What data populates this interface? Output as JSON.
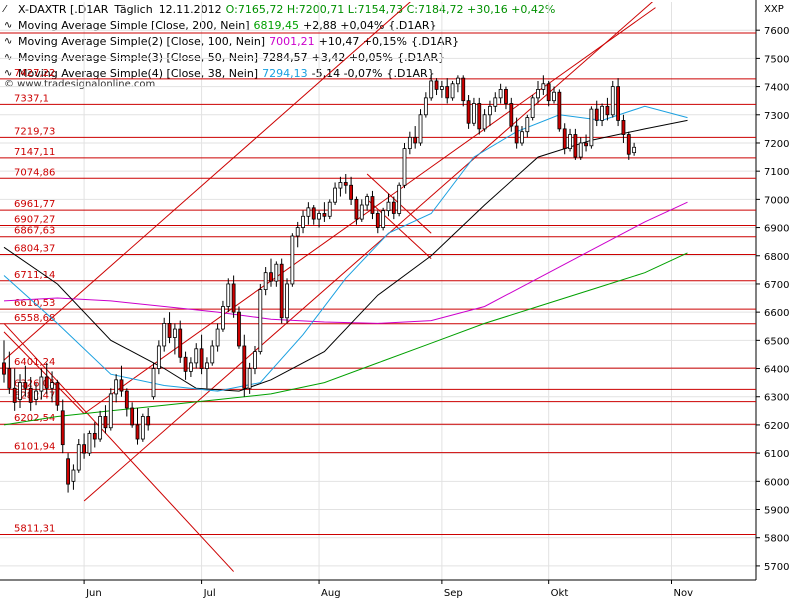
{
  "header": {
    "symbol": "X-DAXTR [.D1AR",
    "period": "Täglich",
    "date": "12.11.2012",
    "ohlc_values": "O:7165,72  H:7200,71  L:7154,73  C:7184,72  +30,16  +0,42%",
    "currency": "XXP"
  },
  "legend": [
    {
      "label": "Moving Average Simple [Close, 200, Nein]",
      "value": "6819,45",
      "change": "+2,88  +0,04%",
      "suffix": "{.D1AR}",
      "color": "#00a000"
    },
    {
      "label": "Moving Average Simple(2) [Close, 100, Nein]",
      "value": "7001,21",
      "change": "+10,47  +0,15%",
      "suffix": "{.D1AR}",
      "color": "#cc00cc"
    },
    {
      "label": "Moving Average Simple(3) [Close, 50, Nein]",
      "value": "7284,57",
      "change": "+3,42  +0,05%",
      "suffix": "{.D1AR}",
      "color": "#000000"
    },
    {
      "label": "Moving Average Simple(4) [Close, 38, Nein]",
      "value": "7294,13",
      "change": "-5,14  -0,07%",
      "suffix": "{.D1AR}",
      "color": "#1aa0e0"
    }
  ],
  "watermark": "© www.tradesignalonline.com",
  "colors": {
    "grid": "#e2e2e2",
    "level_line": "#cc0000",
    "level_text": "#cc0000",
    "candle_down": "#cc0000",
    "candle_up": "#ffffff",
    "candle_border": "#000000"
  },
  "chart_data": {
    "type": "candlestick",
    "ylim": [
      5650,
      7700
    ],
    "y_ticks": [
      5700,
      5800,
      5900,
      6000,
      6100,
      6200,
      6300,
      6400,
      6500,
      6600,
      6700,
      6800,
      6900,
      7000,
      7100,
      7200,
      7300,
      7400,
      7500,
      7600
    ],
    "y_tick_labels": [
      "5700",
      "5800",
      "5900",
      "6000",
      "6100",
      "6200",
      "6300",
      "6400",
      "6500",
      "6600",
      "6700",
      "6800",
      "6900",
      "7000",
      "7100",
      "7200",
      "7300",
      "7400",
      "7500",
      "7600"
    ],
    "x_months": [
      {
        "label": "Jun",
        "bar": 15
      },
      {
        "label": "Jul",
        "bar": 37
      },
      {
        "label": "Aug",
        "bar": 59
      },
      {
        "label": "Sep",
        "bar": 82
      },
      {
        "label": "Okt",
        "bar": 102
      },
      {
        "label": "Nov",
        "bar": 125
      }
    ],
    "horizontal_levels": [
      {
        "value": 7427.22,
        "label": "7427,22"
      },
      {
        "value": 7337.1,
        "label": "7337,1"
      },
      {
        "value": 7219.73,
        "label": "7219,73"
      },
      {
        "value": 7147.11,
        "label": "7147,11"
      },
      {
        "value": 7074.86,
        "label": "7074,86"
      },
      {
        "value": 6961.77,
        "label": "6961,77"
      },
      {
        "value": 6907.27,
        "label": "6907,27"
      },
      {
        "value": 6867.63,
        "label": "6867,63"
      },
      {
        "value": 6804.37,
        "label": "6804,37"
      },
      {
        "value": 6711.14,
        "label": "6711,14"
      },
      {
        "value": 6610.53,
        "label": "6610,53"
      },
      {
        "value": 6558.68,
        "label": "6558,68"
      },
      {
        "value": 6401.24,
        "label": "6401,24"
      },
      {
        "value": 6326.05,
        "label": "6326,05"
      },
      {
        "value": 6282.47,
        "label": "6282,47"
      },
      {
        "value": 6202.54,
        "label": "6202,54"
      },
      {
        "value": 6101.94,
        "label": "6101,94"
      },
      {
        "value": 5811.31,
        "label": "5811,31"
      }
    ],
    "upper_level": {
      "value": 7590
    },
    "trend_lines": [
      {
        "from": [
          0,
          6560
        ],
        "to": [
          43,
          5680
        ]
      },
      {
        "from": [
          0,
          6430
        ],
        "to": [
          106,
          8200
        ]
      },
      {
        "from": [
          15,
          5930
        ],
        "to": [
          125,
          7760
        ]
      },
      {
        "from": [
          15,
          6240
        ],
        "to": [
          122,
          7680
        ]
      },
      {
        "from": [
          68,
          7090
        ],
        "to": [
          80,
          6880
        ]
      },
      {
        "from": [
          68,
          7000
        ],
        "to": [
          80,
          6790
        ]
      },
      {
        "from": [
          0,
          6530
        ],
        "to": [
          15,
          6240
        ]
      }
    ],
    "candles": [
      {
        "o": 6420,
        "h": 6500,
        "l": 6350,
        "c": 6380
      },
      {
        "o": 6400,
        "h": 6460,
        "l": 6310,
        "c": 6330
      },
      {
        "o": 6330,
        "h": 6400,
        "l": 6250,
        "c": 6280
      },
      {
        "o": 6290,
        "h": 6380,
        "l": 6260,
        "c": 6350
      },
      {
        "o": 6350,
        "h": 6410,
        "l": 6300,
        "c": 6330
      },
      {
        "o": 6330,
        "h": 6370,
        "l": 6250,
        "c": 6280
      },
      {
        "o": 6290,
        "h": 6350,
        "l": 6270,
        "c": 6320
      },
      {
        "o": 6320,
        "h": 6400,
        "l": 6290,
        "c": 6370
      },
      {
        "o": 6370,
        "h": 6420,
        "l": 6310,
        "c": 6330
      },
      {
        "o": 6330,
        "h": 6390,
        "l": 6280,
        "c": 6350
      },
      {
        "o": 6350,
        "h": 6360,
        "l": 6250,
        "c": 6270
      },
      {
        "o": 6250,
        "h": 6290,
        "l": 6100,
        "c": 6130
      },
      {
        "o": 6080,
        "h": 6100,
        "l": 5960,
        "c": 5990
      },
      {
        "o": 6000,
        "h": 6060,
        "l": 5970,
        "c": 6040
      },
      {
        "o": 6040,
        "h": 6150,
        "l": 6030,
        "c": 6130
      },
      {
        "o": 6130,
        "h": 6170,
        "l": 6080,
        "c": 6100
      },
      {
        "o": 6100,
        "h": 6180,
        "l": 6090,
        "c": 6170
      },
      {
        "o": 6170,
        "h": 6210,
        "l": 6120,
        "c": 6150
      },
      {
        "o": 6150,
        "h": 6250,
        "l": 6140,
        "c": 6230
      },
      {
        "o": 6230,
        "h": 6270,
        "l": 6170,
        "c": 6190
      },
      {
        "o": 6190,
        "h": 6330,
        "l": 6180,
        "c": 6310
      },
      {
        "o": 6310,
        "h": 6380,
        "l": 6280,
        "c": 6360
      },
      {
        "o": 6360,
        "h": 6410,
        "l": 6300,
        "c": 6320
      },
      {
        "o": 6320,
        "h": 6330,
        "l": 6230,
        "c": 6260
      },
      {
        "o": 6260,
        "h": 6280,
        "l": 6190,
        "c": 6200
      },
      {
        "o": 6200,
        "h": 6260,
        "l": 6130,
        "c": 6150
      },
      {
        "o": 6150,
        "h": 6240,
        "l": 6140,
        "c": 6230
      },
      {
        "o": 6230,
        "h": 6260,
        "l": 6180,
        "c": 6200
      },
      {
        "o": 6300,
        "h": 6420,
        "l": 6290,
        "c": 6400
      },
      {
        "o": 6400,
        "h": 6500,
        "l": 6380,
        "c": 6480
      },
      {
        "o": 6480,
        "h": 6580,
        "l": 6460,
        "c": 6560
      },
      {
        "o": 6560,
        "h": 6600,
        "l": 6490,
        "c": 6510
      },
      {
        "o": 6510,
        "h": 6560,
        "l": 6450,
        "c": 6540
      },
      {
        "o": 6540,
        "h": 6570,
        "l": 6420,
        "c": 6440
      },
      {
        "o": 6440,
        "h": 6460,
        "l": 6360,
        "c": 6390
      },
      {
        "o": 6390,
        "h": 6440,
        "l": 6370,
        "c": 6420
      },
      {
        "o": 6420,
        "h": 6490,
        "l": 6400,
        "c": 6470
      },
      {
        "o": 6470,
        "h": 6520,
        "l": 6380,
        "c": 6400
      },
      {
        "o": 6400,
        "h": 6440,
        "l": 6330,
        "c": 6420
      },
      {
        "o": 6420,
        "h": 6500,
        "l": 6410,
        "c": 6480
      },
      {
        "o": 6480,
        "h": 6560,
        "l": 6460,
        "c": 6540
      },
      {
        "o": 6540,
        "h": 6640,
        "l": 6530,
        "c": 6620
      },
      {
        "o": 6620,
        "h": 6720,
        "l": 6600,
        "c": 6700
      },
      {
        "o": 6700,
        "h": 6730,
        "l": 6580,
        "c": 6600
      },
      {
        "o": 6600,
        "h": 6620,
        "l": 6470,
        "c": 6480
      },
      {
        "o": 6480,
        "h": 6520,
        "l": 6300,
        "c": 6330
      },
      {
        "o": 6330,
        "h": 6420,
        "l": 6310,
        "c": 6400
      },
      {
        "o": 6400,
        "h": 6480,
        "l": 6380,
        "c": 6460
      },
      {
        "o": 6460,
        "h": 6700,
        "l": 6450,
        "c": 6680
      },
      {
        "o": 6680,
        "h": 6760,
        "l": 6660,
        "c": 6740
      },
      {
        "o": 6740,
        "h": 6790,
        "l": 6690,
        "c": 6710
      },
      {
        "o": 6710,
        "h": 6780,
        "l": 6690,
        "c": 6770
      },
      {
        "o": 6770,
        "h": 6790,
        "l": 6560,
        "c": 6580
      },
      {
        "o": 6580,
        "h": 6720,
        "l": 6560,
        "c": 6700
      },
      {
        "o": 6700,
        "h": 6880,
        "l": 6690,
        "c": 6870
      },
      {
        "o": 6870,
        "h": 6920,
        "l": 6830,
        "c": 6900
      },
      {
        "o": 6900,
        "h": 6960,
        "l": 6880,
        "c": 6940
      },
      {
        "o": 6940,
        "h": 6990,
        "l": 6910,
        "c": 6970
      },
      {
        "o": 6970,
        "h": 6980,
        "l": 6910,
        "c": 6930
      },
      {
        "o": 6930,
        "h": 6960,
        "l": 6900,
        "c": 6950
      },
      {
        "o": 6950,
        "h": 6990,
        "l": 6920,
        "c": 6940
      },
      {
        "o": 6940,
        "h": 7000,
        "l": 6930,
        "c": 6990
      },
      {
        "o": 6990,
        "h": 7060,
        "l": 6980,
        "c": 7040
      },
      {
        "o": 7040,
        "h": 7080,
        "l": 7010,
        "c": 7060
      },
      {
        "o": 7060,
        "h": 7090,
        "l": 7020,
        "c": 7050
      },
      {
        "o": 7050,
        "h": 7080,
        "l": 6980,
        "c": 7000
      },
      {
        "o": 7000,
        "h": 7010,
        "l": 6910,
        "c": 6930
      },
      {
        "o": 6930,
        "h": 7000,
        "l": 6920,
        "c": 6980
      },
      {
        "o": 6980,
        "h": 7020,
        "l": 6960,
        "c": 7010
      },
      {
        "o": 7010,
        "h": 7030,
        "l": 6930,
        "c": 6950
      },
      {
        "o": 6950,
        "h": 6960,
        "l": 6880,
        "c": 6900
      },
      {
        "o": 6900,
        "h": 6970,
        "l": 6890,
        "c": 6960
      },
      {
        "o": 6960,
        "h": 7020,
        "l": 6940,
        "c": 6990
      },
      {
        "o": 6990,
        "h": 7010,
        "l": 6930,
        "c": 6950
      },
      {
        "o": 6950,
        "h": 7060,
        "l": 6940,
        "c": 7050
      },
      {
        "o": 7050,
        "h": 7200,
        "l": 7040,
        "c": 7180
      },
      {
        "o": 7180,
        "h": 7240,
        "l": 7160,
        "c": 7220
      },
      {
        "o": 7220,
        "h": 7260,
        "l": 7180,
        "c": 7200
      },
      {
        "o": 7200,
        "h": 7320,
        "l": 7190,
        "c": 7300
      },
      {
        "o": 7300,
        "h": 7380,
        "l": 7290,
        "c": 7360
      },
      {
        "o": 7360,
        "h": 7440,
        "l": 7350,
        "c": 7420
      },
      {
        "o": 7420,
        "h": 7430,
        "l": 7370,
        "c": 7390
      },
      {
        "o": 7390,
        "h": 7420,
        "l": 7360,
        "c": 7400
      },
      {
        "o": 7400,
        "h": 7430,
        "l": 7340,
        "c": 7360
      },
      {
        "o": 7360,
        "h": 7420,
        "l": 7350,
        "c": 7410
      },
      {
        "o": 7410,
        "h": 7440,
        "l": 7380,
        "c": 7430
      },
      {
        "o": 7430,
        "h": 7440,
        "l": 7330,
        "c": 7350
      },
      {
        "o": 7350,
        "h": 7370,
        "l": 7250,
        "c": 7270
      },
      {
        "o": 7270,
        "h": 7360,
        "l": 7260,
        "c": 7340
      },
      {
        "o": 7340,
        "h": 7360,
        "l": 7230,
        "c": 7250
      },
      {
        "o": 7250,
        "h": 7320,
        "l": 7240,
        "c": 7300
      },
      {
        "o": 7300,
        "h": 7350,
        "l": 7260,
        "c": 7330
      },
      {
        "o": 7330,
        "h": 7380,
        "l": 7310,
        "c": 7360
      },
      {
        "o": 7360,
        "h": 7410,
        "l": 7340,
        "c": 7390
      },
      {
        "o": 7390,
        "h": 7400,
        "l": 7320,
        "c": 7340
      },
      {
        "o": 7340,
        "h": 7360,
        "l": 7240,
        "c": 7260
      },
      {
        "o": 7260,
        "h": 7290,
        "l": 7180,
        "c": 7200
      },
      {
        "o": 7200,
        "h": 7260,
        "l": 7190,
        "c": 7240
      },
      {
        "o": 7240,
        "h": 7300,
        "l": 7220,
        "c": 7290
      },
      {
        "o": 7290,
        "h": 7370,
        "l": 7280,
        "c": 7360
      },
      {
        "o": 7360,
        "h": 7420,
        "l": 7340,
        "c": 7390
      },
      {
        "o": 7390,
        "h": 7440,
        "l": 7370,
        "c": 7410
      },
      {
        "o": 7410,
        "h": 7420,
        "l": 7330,
        "c": 7350
      },
      {
        "o": 7350,
        "h": 7400,
        "l": 7340,
        "c": 7380
      },
      {
        "o": 7380,
        "h": 7390,
        "l": 7240,
        "c": 7250
      },
      {
        "o": 7250,
        "h": 7270,
        "l": 7160,
        "c": 7180
      },
      {
        "o": 7180,
        "h": 7250,
        "l": 7170,
        "c": 7230
      },
      {
        "o": 7230,
        "h": 7250,
        "l": 7140,
        "c": 7150
      },
      {
        "o": 7150,
        "h": 7220,
        "l": 7140,
        "c": 7200
      },
      {
        "o": 7200,
        "h": 7230,
        "l": 7170,
        "c": 7190
      },
      {
        "o": 7190,
        "h": 7330,
        "l": 7180,
        "c": 7320
      },
      {
        "o": 7320,
        "h": 7350,
        "l": 7260,
        "c": 7280
      },
      {
        "o": 7280,
        "h": 7340,
        "l": 7260,
        "c": 7330
      },
      {
        "o": 7330,
        "h": 7360,
        "l": 7280,
        "c": 7300
      },
      {
        "o": 7300,
        "h": 7420,
        "l": 7290,
        "c": 7400
      },
      {
        "o": 7400,
        "h": 7430,
        "l": 7260,
        "c": 7280
      },
      {
        "o": 7280,
        "h": 7300,
        "l": 7200,
        "c": 7230
      },
      {
        "o": 7230,
        "h": 7240,
        "l": 7140,
        "c": 7160
      },
      {
        "o": 7165.72,
        "h": 7200.71,
        "l": 7154.73,
        "c": 7184.72
      }
    ],
    "series": [
      {
        "name": "Moving Average Simple [Close, 200, Nein]",
        "color": "#00a000",
        "points": [
          [
            0,
            6200
          ],
          [
            10,
            6230
          ],
          [
            20,
            6250
          ],
          [
            30,
            6270
          ],
          [
            40,
            6290
          ],
          [
            50,
            6310
          ],
          [
            60,
            6350
          ],
          [
            70,
            6420
          ],
          [
            80,
            6490
          ],
          [
            90,
            6560
          ],
          [
            100,
            6620
          ],
          [
            110,
            6680
          ],
          [
            120,
            6740
          ],
          [
            128,
            6810
          ]
        ]
      },
      {
        "name": "Moving Average Simple(2) [Close, 100, Nein]",
        "color": "#cc00cc",
        "points": [
          [
            0,
            6640
          ],
          [
            10,
            6650
          ],
          [
            20,
            6640
          ],
          [
            30,
            6620
          ],
          [
            40,
            6600
          ],
          [
            50,
            6575
          ],
          [
            60,
            6565
          ],
          [
            70,
            6560
          ],
          [
            80,
            6570
          ],
          [
            90,
            6620
          ],
          [
            100,
            6720
          ],
          [
            110,
            6820
          ],
          [
            120,
            6920
          ],
          [
            128,
            6990
          ]
        ]
      },
      {
        "name": "Moving Average Simple(3) [Close, 50, Nein]",
        "color": "#000000",
        "points": [
          [
            0,
            6830
          ],
          [
            10,
            6700
          ],
          [
            20,
            6500
          ],
          [
            30,
            6400
          ],
          [
            36,
            6330
          ],
          [
            44,
            6320
          ],
          [
            50,
            6360
          ],
          [
            60,
            6460
          ],
          [
            70,
            6660
          ],
          [
            80,
            6800
          ],
          [
            90,
            6980
          ],
          [
            100,
            7150
          ],
          [
            110,
            7210
          ],
          [
            120,
            7250
          ],
          [
            128,
            7280
          ]
        ]
      },
      {
        "name": "Moving Average Simple(4) [Close, 38, Nein]",
        "color": "#1aa0e0",
        "points": [
          [
            0,
            6730
          ],
          [
            10,
            6560
          ],
          [
            20,
            6380
          ],
          [
            30,
            6340
          ],
          [
            40,
            6320
          ],
          [
            48,
            6350
          ],
          [
            56,
            6520
          ],
          [
            64,
            6720
          ],
          [
            72,
            6880
          ],
          [
            80,
            6950
          ],
          [
            88,
            7150
          ],
          [
            96,
            7240
          ],
          [
            104,
            7300
          ],
          [
            112,
            7280
          ],
          [
            120,
            7330
          ],
          [
            128,
            7290
          ]
        ]
      }
    ]
  }
}
